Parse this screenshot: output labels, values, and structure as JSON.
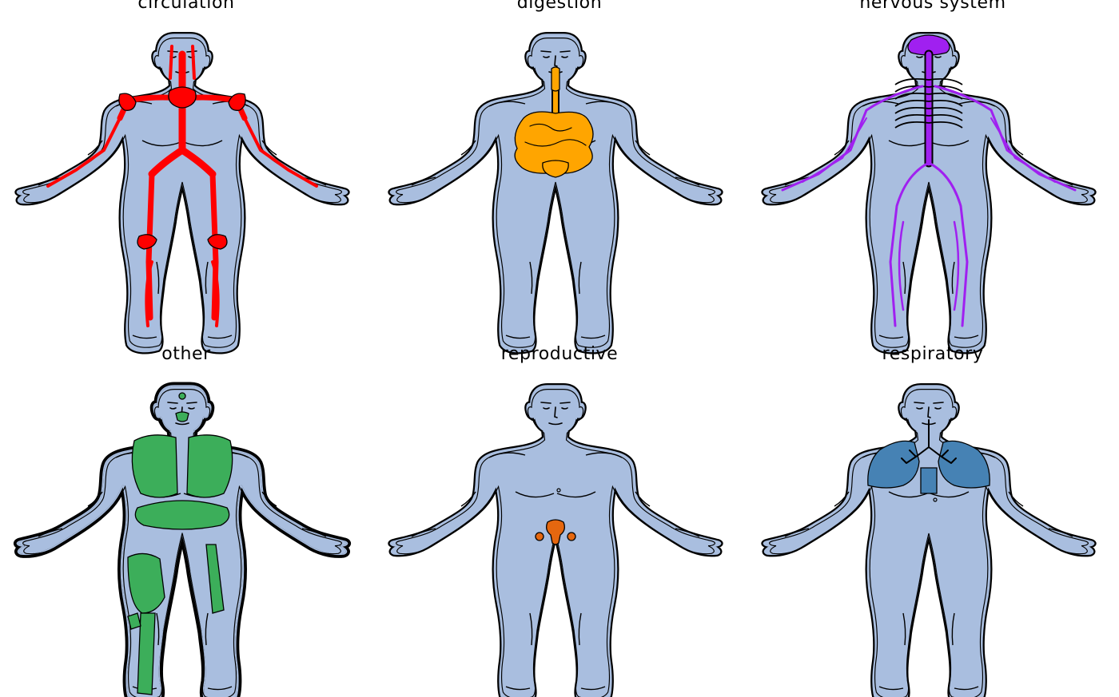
{
  "colors": {
    "body_fill": "#a9bedf",
    "outline": "#000000",
    "circulation": "#ff0000",
    "digestion": "#ffa500",
    "nervous": "#a020f0",
    "other": "#3cae5a",
    "reproductive": "#e5670f",
    "respiratory": "#4682b4"
  },
  "panels": [
    {
      "id": "circulation",
      "title": "circulation",
      "system_color": "#ff0000",
      "organ_icon": "blood-vessels-icon"
    },
    {
      "id": "digestion",
      "title": "digestion",
      "system_color": "#ffa500",
      "organ_icon": "digestive-tract-icon"
    },
    {
      "id": "nervous",
      "title": "nervous system",
      "system_color": "#a020f0",
      "organ_icon": "nerves-icon"
    },
    {
      "id": "other",
      "title": "other",
      "system_color": "#3cae5a",
      "organ_icon": "muscle-skeleton-icon"
    },
    {
      "id": "reproductive",
      "title": "reproductive",
      "system_color": "#e5670f",
      "organ_icon": "reproductive-organs-icon"
    },
    {
      "id": "respiratory",
      "title": "respiratory",
      "system_color": "#4682b4",
      "organ_icon": "lungs-icon"
    }
  ]
}
